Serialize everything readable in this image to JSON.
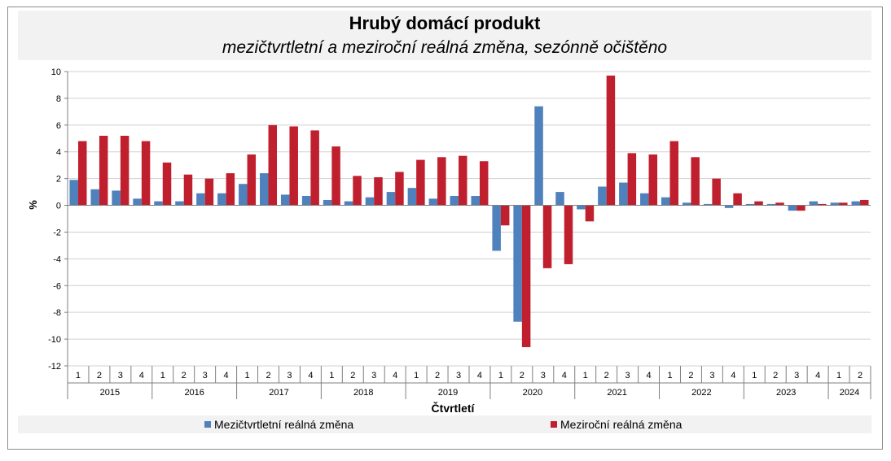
{
  "chart_data": {
    "type": "bar",
    "title": "Hrubý domácí produkt",
    "subtitle": "mezičtvrtletní a meziroční reálná změna, sezónně očištěno",
    "ylabel": "%",
    "xlabel": "Čtvrtletí",
    "ylim": [
      -12,
      10
    ],
    "yticks": [
      10,
      8,
      6,
      4,
      2,
      0,
      -2,
      -4,
      -6,
      -8,
      -10,
      -12
    ],
    "grid": true,
    "legend_position": "bottom",
    "quarters": [
      "1",
      "2",
      "3",
      "4",
      "1",
      "2",
      "3",
      "4",
      "1",
      "2",
      "3",
      "4",
      "1",
      "2",
      "3",
      "4",
      "1",
      "2",
      "3",
      "4",
      "1",
      "2",
      "3",
      "4",
      "1",
      "2",
      "3",
      "4",
      "1",
      "2",
      "3",
      "4",
      "1",
      "2",
      "3",
      "4",
      "1",
      "2"
    ],
    "years": [
      {
        "label": "2015",
        "count": 4
      },
      {
        "label": "2016",
        "count": 4
      },
      {
        "label": "2017",
        "count": 4
      },
      {
        "label": "2018",
        "count": 4
      },
      {
        "label": "2019",
        "count": 4
      },
      {
        "label": "2020",
        "count": 4
      },
      {
        "label": "2021",
        "count": 4
      },
      {
        "label": "2022",
        "count": 4
      },
      {
        "label": "2023",
        "count": 4
      },
      {
        "label": "2024",
        "count": 2
      }
    ],
    "series": [
      {
        "name": "Mezičtvrtletní reálná změna",
        "color": "#4f81bd",
        "values": [
          1.9,
          1.2,
          1.1,
          0.5,
          0.3,
          0.3,
          0.9,
          0.9,
          1.6,
          2.4,
          0.8,
          0.7,
          0.4,
          0.3,
          0.6,
          1.0,
          1.3,
          0.5,
          0.7,
          0.7,
          -3.4,
          -8.7,
          7.4,
          1.0,
          -0.3,
          1.4,
          1.7,
          0.9,
          0.6,
          0.2,
          0.1,
          -0.2,
          0.1,
          0.1,
          -0.4,
          0.3,
          0.2,
          0.3
        ]
      },
      {
        "name": "Meziroční reálná změna",
        "color": "#c0202e",
        "values": [
          4.8,
          5.2,
          5.2,
          4.8,
          3.2,
          2.3,
          2.0,
          2.4,
          3.8,
          6.0,
          5.9,
          5.6,
          4.4,
          2.2,
          2.1,
          2.5,
          3.4,
          3.6,
          3.7,
          3.3,
          -1.5,
          -10.6,
          -4.7,
          -4.4,
          -1.2,
          9.7,
          3.9,
          3.8,
          4.8,
          3.6,
          2.0,
          0.9,
          0.3,
          0.2,
          -0.4,
          0.1,
          0.2,
          0.4
        ]
      }
    ]
  }
}
